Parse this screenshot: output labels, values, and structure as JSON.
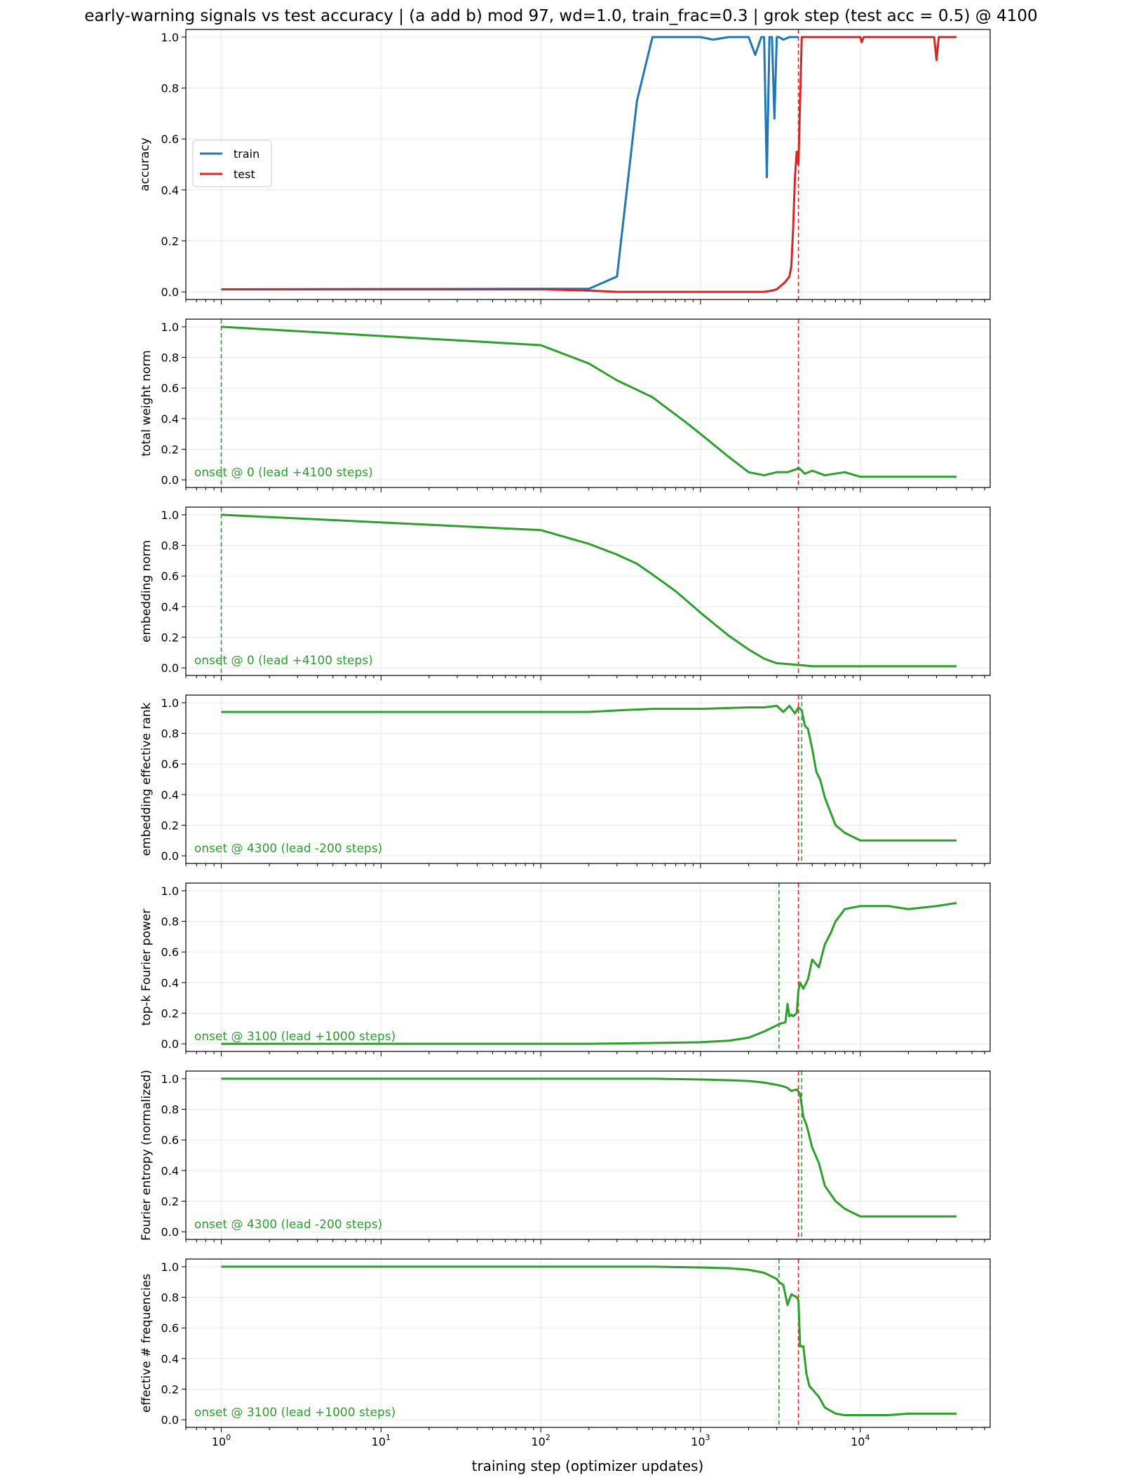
{
  "figure_title": "early-warning signals vs test accuracy  |  (a add b) mod 97, wd=1.0, train_frac=0.3  |  grok step (test acc = 0.5) @ 4100",
  "x_axis_label": "training step (optimizer updates)",
  "colors": {
    "train": "#1f77b4",
    "test": "#d62728",
    "signal": "#2ca02c",
    "grok_line": "#d62728",
    "onset_line": "#2ca02c",
    "grid": "#e6e6e6"
  },
  "chart_data": [
    {
      "type": "line",
      "ylabel": "accuracy",
      "xscale": "log",
      "xlim": [
        0.6,
        65000
      ],
      "ylim": [
        -0.03,
        1.03
      ],
      "yticks": [
        "0.0",
        "0.2",
        "0.4",
        "0.6",
        "0.8",
        "1.0"
      ],
      "grid": true,
      "legend_position": "center-left",
      "grok_step": 4100,
      "series": [
        {
          "name": "train",
          "color": "#1f77b4",
          "x": [
            1,
            100,
            200,
            300,
            400,
            500,
            600,
            800,
            1000,
            1200,
            1500,
            1800,
            2000,
            2200,
            2400,
            2500,
            2600,
            2700,
            2800,
            2900,
            3000,
            3100,
            3300,
            3600,
            3900,
            4100
          ],
          "y": [
            0.01,
            0.012,
            0.012,
            0.06,
            0.75,
            1.0,
            1.0,
            1.0,
            1.0,
            0.99,
            1.0,
            1.0,
            1.0,
            0.93,
            1.0,
            1.0,
            0.45,
            1.0,
            1.0,
            0.68,
            1.0,
            1.0,
            0.99,
            1.0,
            1.0,
            1.0
          ]
        },
        {
          "name": "test",
          "color": "#d62728",
          "x": [
            1,
            100,
            200,
            300,
            500,
            1000,
            2000,
            2500,
            2800,
            3000,
            3200,
            3400,
            3600,
            3700,
            3800,
            3900,
            4000,
            4100,
            4200,
            4300,
            4500,
            5000,
            6000,
            8000,
            10000,
            10200,
            10500,
            15000,
            20000,
            25000,
            29000,
            30000,
            31000,
            40000
          ],
          "y": [
            0.01,
            0.01,
            0.005,
            0.0,
            0.0,
            0.0,
            0.0,
            0.0,
            0.005,
            0.01,
            0.025,
            0.04,
            0.06,
            0.1,
            0.25,
            0.45,
            0.55,
            0.5,
            0.75,
            1.0,
            1.0,
            1.0,
            1.0,
            1.0,
            1.0,
            0.98,
            1.0,
            1.0,
            1.0,
            1.0,
            1.0,
            0.91,
            1.0,
            1.0
          ]
        }
      ]
    },
    {
      "type": "line",
      "ylabel": "total weight norm",
      "xscale": "log",
      "xlim": [
        0.6,
        65000
      ],
      "ylim": [
        -0.05,
        1.05
      ],
      "yticks": [
        "0.0",
        "0.2",
        "0.4",
        "0.6",
        "0.8",
        "1.0"
      ],
      "grid": true,
      "grok_step": 4100,
      "onset_step": 1,
      "onset_text": "onset @ 0  (lead +4100 steps)",
      "series": [
        {
          "color": "#2ca02c",
          "x": [
            1,
            100,
            200,
            300,
            500,
            800,
            1000,
            1500,
            2000,
            2500,
            3000,
            3500,
            4000,
            4100,
            4500,
            5000,
            6000,
            8000,
            10000,
            20000,
            40000
          ],
          "y": [
            1.0,
            0.88,
            0.76,
            0.65,
            0.54,
            0.38,
            0.3,
            0.15,
            0.05,
            0.03,
            0.05,
            0.05,
            0.07,
            0.08,
            0.04,
            0.06,
            0.03,
            0.05,
            0.02,
            0.02,
            0.02
          ]
        }
      ]
    },
    {
      "type": "line",
      "ylabel": "embedding norm",
      "xscale": "log",
      "xlim": [
        0.6,
        65000
      ],
      "ylim": [
        -0.05,
        1.05
      ],
      "yticks": [
        "0.0",
        "0.2",
        "0.4",
        "0.6",
        "0.8",
        "1.0"
      ],
      "grid": true,
      "grok_step": 4100,
      "onset_step": 1,
      "onset_text": "onset @ 0  (lead +4100 steps)",
      "series": [
        {
          "color": "#2ca02c",
          "x": [
            1,
            100,
            200,
            300,
            400,
            500,
            700,
            1000,
            1500,
            2000,
            2500,
            3000,
            4000,
            5000,
            6000,
            10000,
            20000,
            40000
          ],
          "y": [
            1.0,
            0.9,
            0.81,
            0.74,
            0.68,
            0.61,
            0.5,
            0.36,
            0.21,
            0.12,
            0.06,
            0.03,
            0.02,
            0.01,
            0.01,
            0.01,
            0.01,
            0.01
          ]
        }
      ]
    },
    {
      "type": "line",
      "ylabel": "embedding effective rank",
      "xscale": "log",
      "xlim": [
        0.6,
        65000
      ],
      "ylim": [
        -0.05,
        1.05
      ],
      "yticks": [
        "0.0",
        "0.2",
        "0.4",
        "0.6",
        "0.8",
        "1.0"
      ],
      "grid": true,
      "grok_step": 4100,
      "onset_step": 4300,
      "onset_text": "onset @ 4300  (lead -200 steps)",
      "series": [
        {
          "color": "#2ca02c",
          "x": [
            1,
            100,
            200,
            300,
            500,
            1000,
            2000,
            2500,
            3000,
            3300,
            3600,
            3900,
            4100,
            4200,
            4300,
            4500,
            4700,
            5000,
            5300,
            5600,
            6000,
            7000,
            8000,
            10000,
            15000,
            20000,
            30000,
            40000
          ],
          "y": [
            0.94,
            0.94,
            0.94,
            0.95,
            0.96,
            0.96,
            0.97,
            0.97,
            0.98,
            0.94,
            0.98,
            0.93,
            0.97,
            0.96,
            0.95,
            0.85,
            0.83,
            0.7,
            0.55,
            0.5,
            0.38,
            0.2,
            0.15,
            0.1,
            0.1,
            0.1,
            0.1,
            0.1
          ]
        }
      ]
    },
    {
      "type": "line",
      "ylabel": "top-k Fourier power",
      "xscale": "log",
      "xlim": [
        0.6,
        65000
      ],
      "ylim": [
        -0.05,
        1.05
      ],
      "yticks": [
        "0.0",
        "0.2",
        "0.4",
        "0.6",
        "0.8",
        "1.0"
      ],
      "grid": true,
      "grok_step": 4100,
      "onset_step": 3100,
      "onset_text": "onset @ 3100  (lead +1000 steps)",
      "series": [
        {
          "color": "#2ca02c",
          "x": [
            1,
            100,
            200,
            500,
            1000,
            1500,
            2000,
            2500,
            3000,
            3100,
            3400,
            3500,
            3600,
            3700,
            3800,
            4000,
            4100,
            4200,
            4400,
            4700,
            5000,
            5500,
            6000,
            6500,
            7000,
            8000,
            10000,
            15000,
            20000,
            30000,
            40000
          ],
          "y": [
            0.0,
            0.0,
            0.0,
            0.005,
            0.01,
            0.02,
            0.04,
            0.08,
            0.12,
            0.13,
            0.14,
            0.26,
            0.18,
            0.19,
            0.18,
            0.2,
            0.35,
            0.4,
            0.36,
            0.42,
            0.55,
            0.5,
            0.65,
            0.72,
            0.8,
            0.88,
            0.9,
            0.9,
            0.88,
            0.9,
            0.92
          ]
        }
      ]
    },
    {
      "type": "line",
      "ylabel": "Fourier entropy (normalized)",
      "xscale": "log",
      "xlim": [
        0.6,
        65000
      ],
      "ylim": [
        -0.05,
        1.05
      ],
      "yticks": [
        "0.0",
        "0.2",
        "0.4",
        "0.6",
        "0.8",
        "1.0"
      ],
      "grid": true,
      "grok_step": 4100,
      "onset_step": 4300,
      "onset_text": "onset @ 4300  (lead -200 steps)",
      "series": [
        {
          "color": "#2ca02c",
          "x": [
            1,
            100,
            500,
            1000,
            1500,
            2000,
            2500,
            3000,
            3300,
            3500,
            3700,
            4000,
            4200,
            4400,
            4600,
            5000,
            5500,
            6000,
            7000,
            8000,
            10000,
            15000,
            20000,
            30000,
            40000
          ],
          "y": [
            1.0,
            1.0,
            1.0,
            0.995,
            0.99,
            0.985,
            0.975,
            0.96,
            0.95,
            0.94,
            0.92,
            0.93,
            0.9,
            0.75,
            0.7,
            0.55,
            0.45,
            0.3,
            0.2,
            0.15,
            0.1,
            0.1,
            0.1,
            0.1,
            0.1
          ]
        }
      ]
    },
    {
      "type": "line",
      "ylabel": "effective # frequencies",
      "xscale": "log",
      "xlim": [
        0.6,
        65000
      ],
      "ylim": [
        -0.05,
        1.05
      ],
      "yticks": [
        "0.0",
        "0.2",
        "0.4",
        "0.6",
        "0.8",
        "1.0"
      ],
      "grid": true,
      "grok_step": 4100,
      "onset_step": 3100,
      "onset_text": "onset @ 3100  (lead +1000 steps)",
      "series": [
        {
          "color": "#2ca02c",
          "x": [
            1,
            100,
            500,
            1000,
            1500,
            2000,
            2500,
            3000,
            3100,
            3300,
            3500,
            3700,
            4000,
            4100,
            4200,
            4400,
            4600,
            4800,
            5000,
            5500,
            6000,
            7000,
            8000,
            10000,
            15000,
            20000,
            30000,
            40000
          ],
          "y": [
            1.0,
            1.0,
            1.0,
            0.995,
            0.99,
            0.98,
            0.96,
            0.92,
            0.9,
            0.88,
            0.75,
            0.82,
            0.8,
            0.78,
            0.48,
            0.48,
            0.3,
            0.22,
            0.2,
            0.15,
            0.08,
            0.04,
            0.03,
            0.03,
            0.03,
            0.04,
            0.04,
            0.04
          ]
        }
      ]
    }
  ]
}
